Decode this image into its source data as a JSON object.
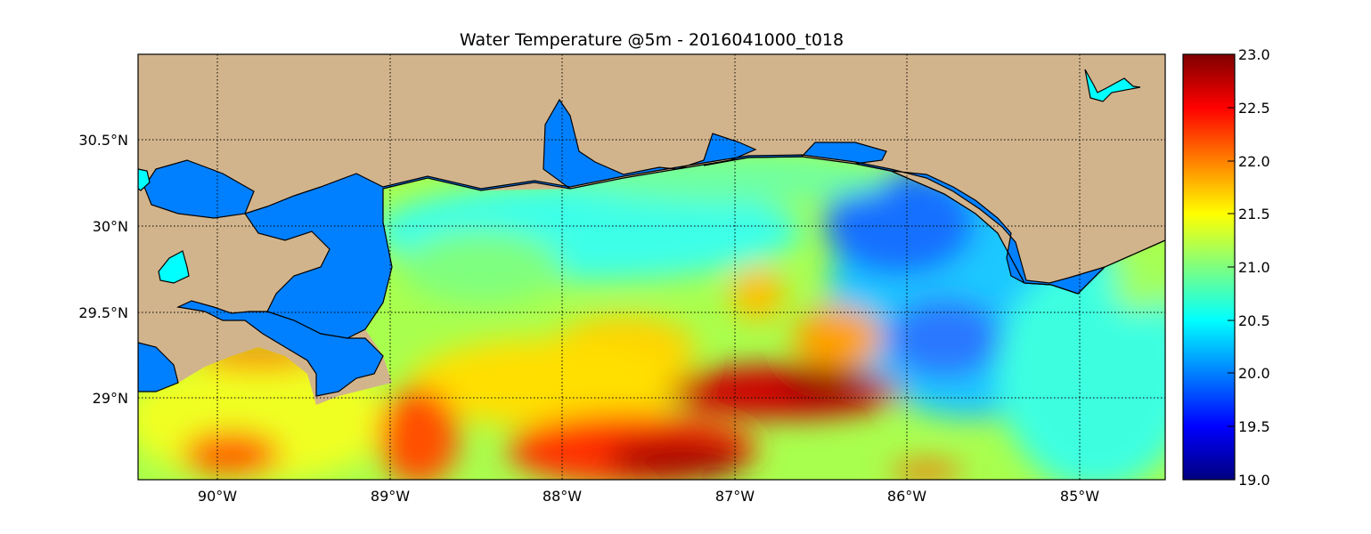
{
  "title": "Water Temperature @5m - 2016041000_t018",
  "map": {
    "lon_range": [
      -90.5,
      -84.5
    ],
    "lat_range": [
      28.5,
      31.0
    ],
    "lon_ticks": [
      {
        "value": -90,
        "label": "90°W"
      },
      {
        "value": -89,
        "label": "89°W"
      },
      {
        "value": -88,
        "label": "88°W"
      },
      {
        "value": -87,
        "label": "87°W"
      },
      {
        "value": -86,
        "label": "86°W"
      },
      {
        "value": -85,
        "label": "85°W"
      }
    ],
    "lat_ticks": [
      {
        "value": 30.5,
        "label": "30.5°N"
      },
      {
        "value": 30.0,
        "label": "30°N"
      },
      {
        "value": 29.5,
        "label": "29.5°N"
      },
      {
        "value": 29.0,
        "label": "29°N"
      }
    ],
    "grid": "dotted",
    "colors": {
      "land": "#d2b48c",
      "inland_water": "#0080ff",
      "lake": "#00ffff",
      "grid": "#000000"
    }
  },
  "colorbar": {
    "min": 19.0,
    "max": 23.0,
    "colormap": "jet",
    "ticks": [
      "23.0",
      "22.5",
      "22.0",
      "21.5",
      "21.0",
      "20.5",
      "20.0",
      "19.5",
      "19.0"
    ]
  }
}
